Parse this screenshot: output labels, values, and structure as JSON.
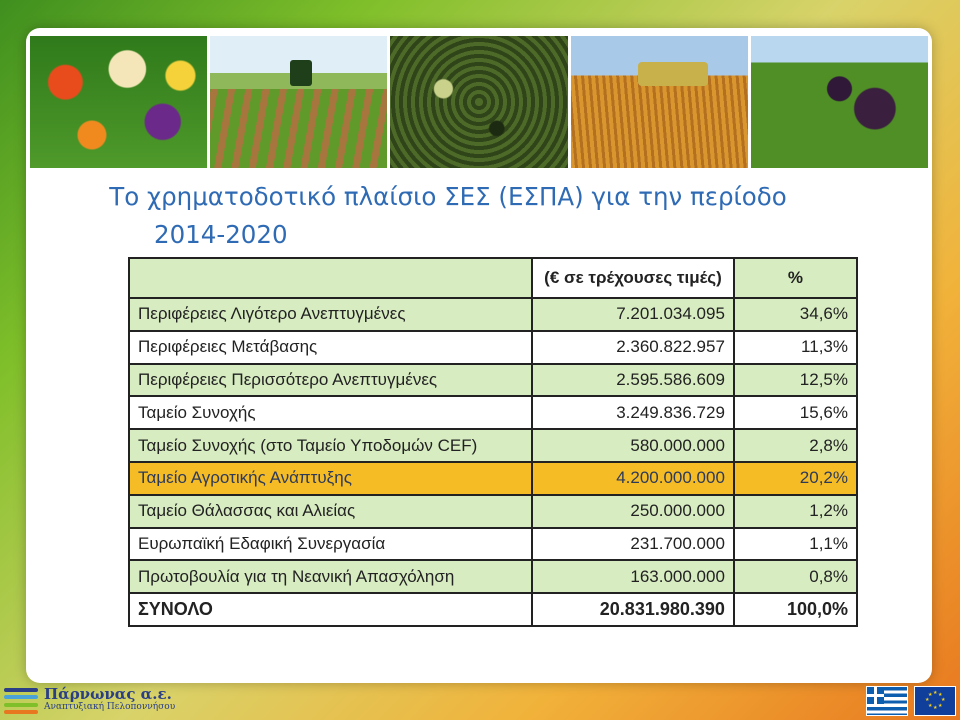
{
  "title": {
    "line1": "Το χρηματοδοτικό πλαίσιο ΣΕΣ (ΕΣΠΑ) για την περίοδο",
    "line2": "2014-2020"
  },
  "table": {
    "header": {
      "amount": "(€ σε τρέχουσες τιμές)",
      "pct": "%"
    },
    "rows": [
      {
        "name": "Περιφέρειες Λιγότερο Ανεπτυγμένες",
        "amount": "7.201.034.095",
        "pct": "34,6%"
      },
      {
        "name": "Περιφέρειες Μετάβασης",
        "amount": "2.360.822.957",
        "pct": "11,3%"
      },
      {
        "name": "Περιφέρειες Περισσότερο Ανεπτυγμένες",
        "amount": "2.595.586.609",
        "pct": "12,5%"
      },
      {
        "name": "Ταμείο Συνοχής",
        "amount": "3.249.836.729",
        "pct": "15,6%"
      },
      {
        "name": "Ταμείο Συνοχής (στο Ταμείο Υποδομών CEF)",
        "amount": "580.000.000",
        "pct": "2,8%"
      },
      {
        "name": "Ταμείο Αγροτικής Ανάπτυξης",
        "amount": "4.200.000.000",
        "pct": "20,2%"
      },
      {
        "name": "Ταμείο Θάλασσας και Αλιείας",
        "amount": "250.000.000",
        "pct": "1,2%"
      },
      {
        "name": "Ευρωπαϊκή Εδαφική Συνεργασία",
        "amount": "231.700.000",
        "pct": "1,1%"
      },
      {
        "name": "Πρωτοβουλία για τη Νεανική Απασχόληση",
        "amount": "163.000.000",
        "pct": "0,8%"
      },
      {
        "name": "ΣΥΝΟΛΟ",
        "amount": "20.831.980.390",
        "pct": "100,0%"
      }
    ]
  },
  "footer": {
    "logo_name": "Πάρνωνας α.ε.",
    "logo_subtitle": "Αναπτυξιακή Πελοποννήσου"
  },
  "colors": {
    "title": "#2f6bb4",
    "row_green": "#d7ecc1",
    "row_highlight": "#f6bc26",
    "logo": "#2a3f86"
  },
  "icons": [
    "vegetables-photo",
    "field-tractor-photo",
    "olives-photo",
    "wheat-harvester-photo",
    "vineyard-photo",
    "greek-flag-icon",
    "eu-flag-icon"
  ]
}
